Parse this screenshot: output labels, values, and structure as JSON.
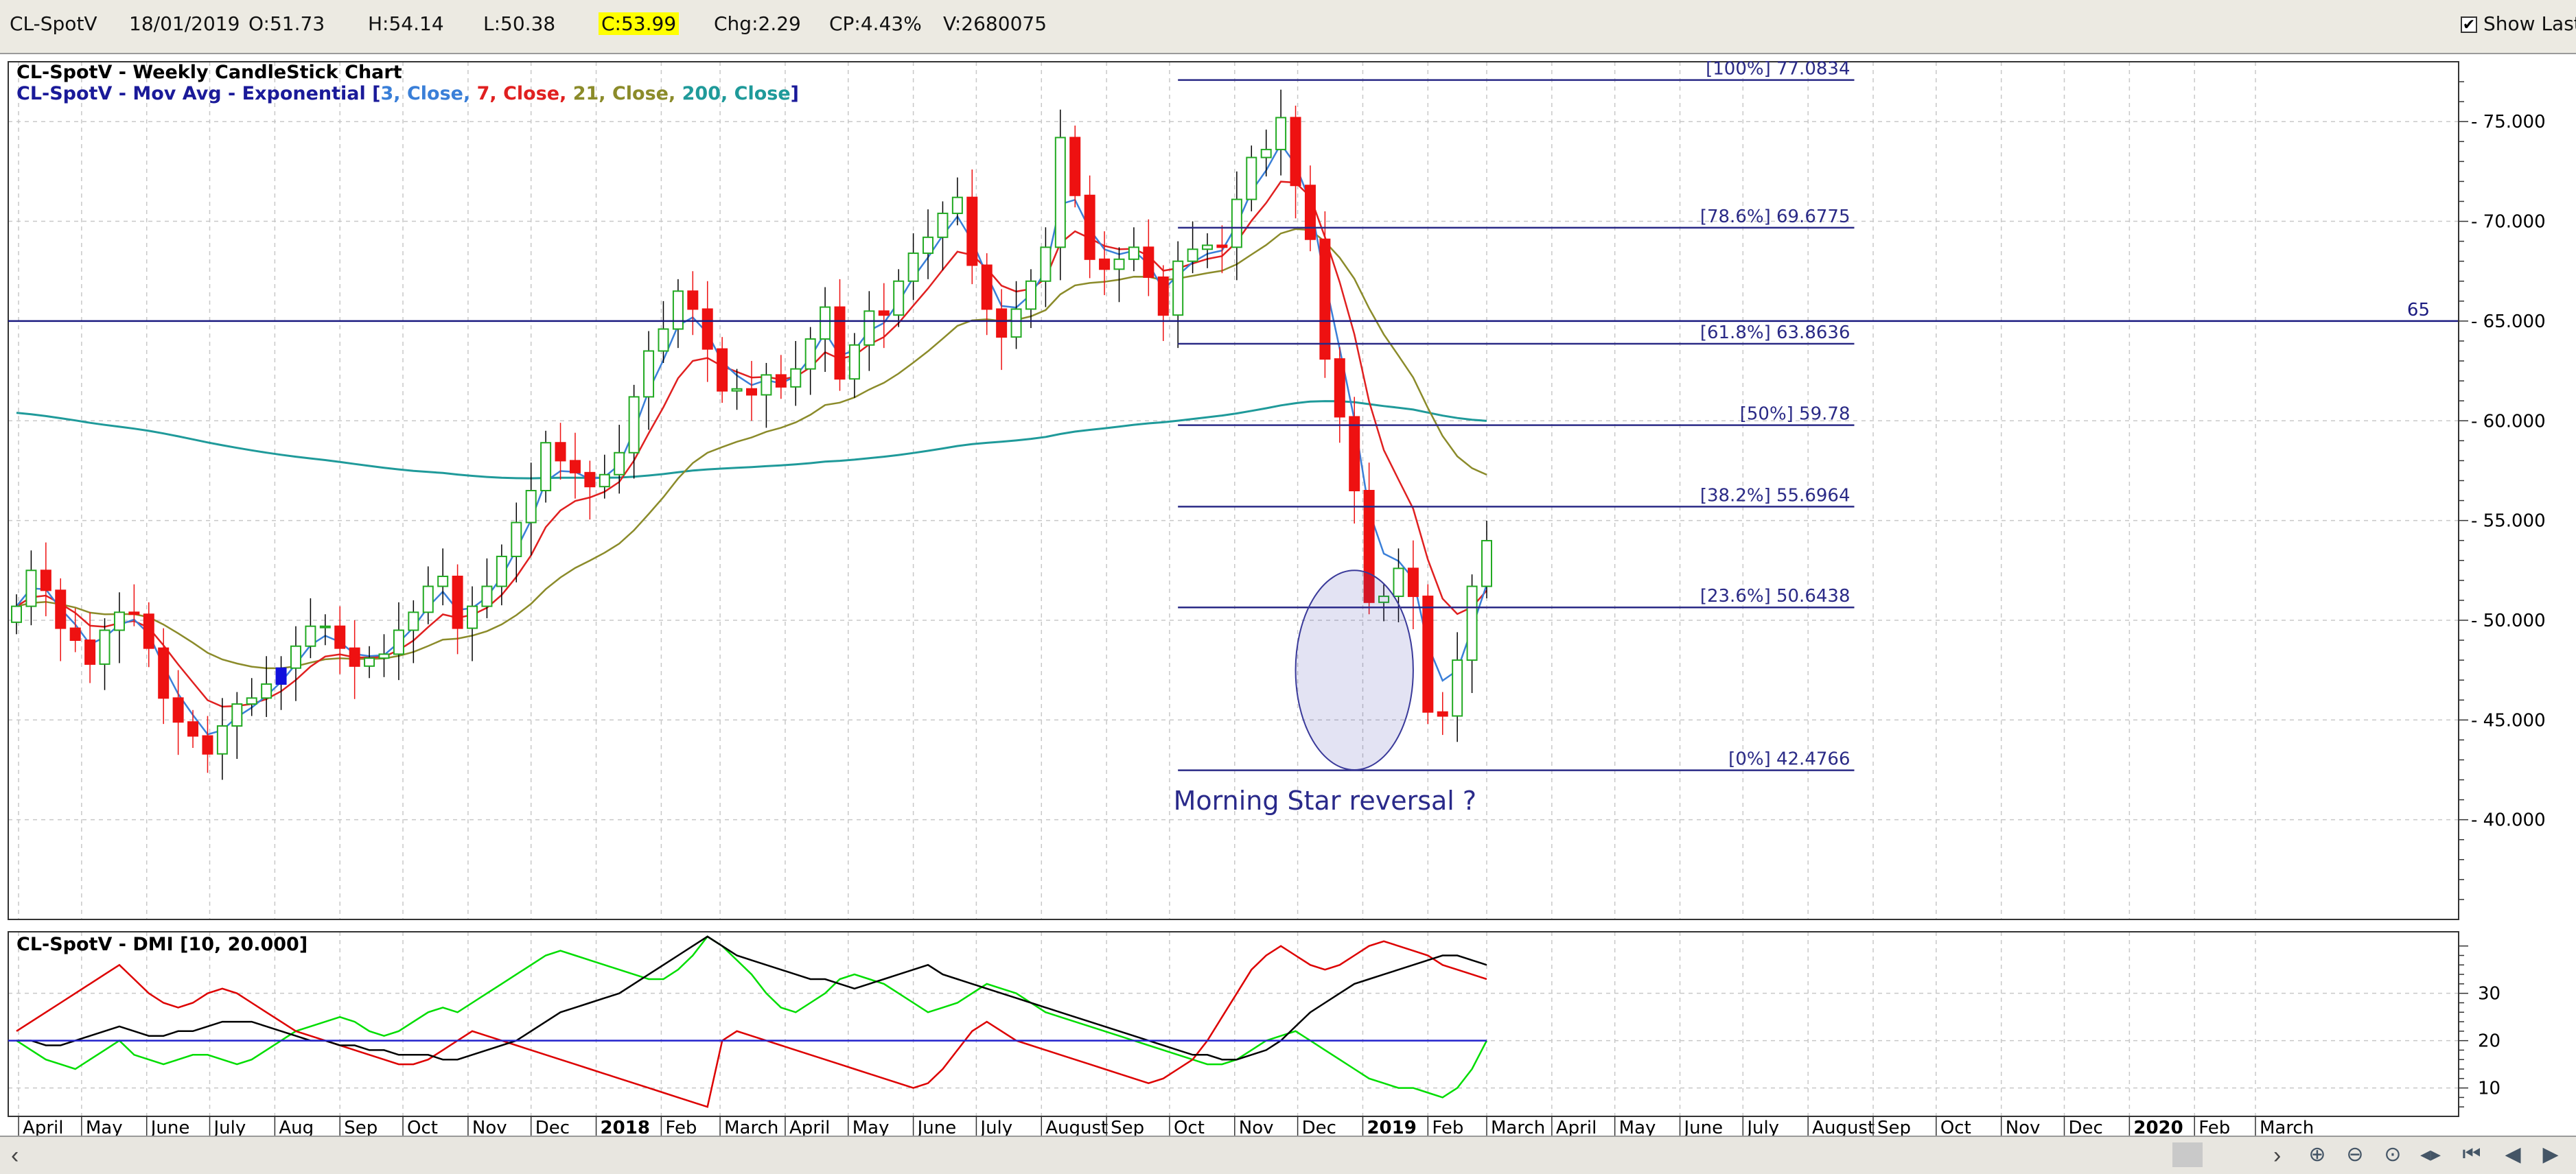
{
  "toolbar": {
    "symbol": "CL-SpotV",
    "date": "18/01/2019",
    "open": "O:51.73",
    "high": "H:54.14",
    "low": "L:50.38",
    "close": "C:53.99",
    "change": "Chg:2.29",
    "change_pct": "CP:4.43%",
    "volume": "V:2680075",
    "show_last_label": "Show Last",
    "show_last_checked": true
  },
  "chart_data": [
    {
      "type": "candlestick",
      "title": "CL-SpotV - Weekly CandleStick Chart",
      "subtitle_prefix": "CL-SpotV - Mov Avg - Exponential [",
      "subtitle_parts": [
        {
          "text": "3, Close, ",
          "color": "#3a7fd8"
        },
        {
          "text": "7, Close, ",
          "color": "#e02020"
        },
        {
          "text": "21, Close, ",
          "color": "#8b8b2a"
        },
        {
          "text": "200, Close",
          "color": "#1f9a9a"
        }
      ],
      "subtitle_suffix": "]",
      "y_ticks": [
        "75.000",
        "70.000",
        "65.000",
        "60.000",
        "55.000",
        "50.000",
        "45.000",
        "40.000"
      ],
      "ylim": [
        35,
        78
      ],
      "x_labels": [
        "April",
        "May",
        "June",
        "July",
        "Aug",
        "Sep",
        "Oct",
        "Nov",
        "Dec",
        "2018",
        "Feb",
        "March",
        "April",
        "May",
        "June",
        "July",
        "August",
        "Sep",
        "Oct",
        "Nov",
        "Dec",
        "2019",
        "Feb",
        "March",
        "April",
        "May",
        "June",
        "July",
        "August",
        "Sep",
        "Oct",
        "Nov",
        "Dec",
        "2020",
        "Feb",
        "March"
      ],
      "bold_x_labels": [
        "2018",
        "2019",
        "2020"
      ],
      "closes": [
        50.7,
        52.5,
        51.5,
        49.6,
        49.0,
        47.8,
        49.5,
        50.4,
        50.3,
        48.6,
        46.1,
        44.9,
        44.2,
        43.3,
        44.7,
        45.8,
        46.1,
        46.8,
        47.6,
        48.7,
        49.7,
        49.7,
        48.6,
        47.7,
        48.1,
        48.3,
        49.5,
        50.4,
        51.7,
        52.2,
        49.6,
        50.7,
        51.7,
        53.2,
        54.9,
        56.5,
        58.9,
        58.0,
        57.4,
        56.7,
        57.3,
        58.4,
        61.2,
        63.5,
        64.6,
        66.5,
        65.6,
        63.6,
        61.5,
        61.6,
        61.3,
        62.3,
        61.7,
        62.6,
        64.1,
        65.7,
        62.1,
        63.8,
        65.5,
        65.3,
        67.0,
        68.4,
        69.2,
        70.4,
        71.2,
        67.8,
        65.6,
        64.2,
        65.6,
        67.0,
        68.7,
        74.2,
        71.3,
        68.1,
        67.6,
        68.1,
        68.7,
        67.2,
        65.3,
        68.0,
        68.6,
        68.8,
        68.7,
        71.1,
        73.2,
        73.6,
        75.2,
        71.8,
        69.1,
        63.1,
        60.2,
        56.5,
        50.9,
        51.2,
        52.6,
        51.2,
        45.4,
        45.2,
        48.0,
        51.7,
        53.99
      ],
      "closes_index0_week": "2017-03-31",
      "highlighted_candle_week": "2017-08-04",
      "ema_200_start": 60.5,
      "horizontal_line": {
        "value": 65,
        "label": "65"
      },
      "fibonacci": {
        "levels": [
          {
            "label": "[100%] 77.0834",
            "value": 77.0834
          },
          {
            "label": "[78.6%] 69.6775",
            "value": 69.6775
          },
          {
            "label": "[61.8%] 63.8636",
            "value": 63.8636
          },
          {
            "label": "[50%] 59.78",
            "value": 59.78
          },
          {
            "label": "[38.2%] 55.6964",
            "value": 55.6964
          },
          {
            "label": "[23.6%] 50.6438",
            "value": 50.6438
          },
          {
            "label": "[0%] 42.4766",
            "value": 42.4766
          }
        ],
        "start_week": "2018-10-05",
        "end_week": "2019-08-23"
      },
      "annotation": {
        "text": "Morning Star reversal ?",
        "week": "2018-12-14",
        "value": 40.5
      },
      "ellipse": {
        "center_week": "2018-12-28",
        "center_value": 47.5,
        "half_width_weeks": 4,
        "half_height": 5
      }
    },
    {
      "type": "line",
      "title": "CL-SpotV - DMI [10, 20.000]",
      "y_ticks": [
        "30",
        "20",
        "10"
      ],
      "ylim": [
        4,
        43
      ],
      "reference_line": 20,
      "series": [
        {
          "color": "#00dd00",
          "values": [
            20,
            18,
            16,
            15,
            14,
            16,
            18,
            20,
            17,
            16,
            15,
            16,
            17,
            17,
            16,
            15,
            16,
            18,
            20,
            22,
            23,
            24,
            25,
            24,
            22,
            21,
            22,
            24,
            26,
            27,
            26,
            28,
            30,
            32,
            34,
            36,
            38,
            39,
            38,
            37,
            36,
            35,
            34,
            33,
            33,
            35,
            38,
            42,
            40,
            37,
            34,
            30,
            27,
            26,
            28,
            30,
            33,
            34,
            33,
            32,
            30,
            28,
            26,
            27,
            28,
            30,
            32,
            31,
            30,
            28,
            26,
            25,
            24,
            23,
            22,
            21,
            20,
            19,
            18,
            17,
            16,
            15,
            15,
            16,
            18,
            20,
            21,
            22,
            20,
            18,
            16,
            14,
            12,
            11,
            10,
            10,
            9,
            8,
            10,
            14,
            20
          ]
        },
        {
          "color": "#dd0000",
          "values": [
            22,
            24,
            26,
            28,
            30,
            32,
            34,
            36,
            33,
            30,
            28,
            27,
            28,
            30,
            31,
            30,
            28,
            26,
            24,
            22,
            21,
            20,
            19,
            18,
            17,
            16,
            15,
            15,
            16,
            18,
            20,
            22,
            21,
            20,
            19,
            18,
            17,
            16,
            15,
            14,
            13,
            12,
            11,
            10,
            9,
            8,
            7,
            6,
            20,
            22,
            21,
            20,
            19,
            18,
            17,
            16,
            15,
            14,
            13,
            12,
            11,
            10,
            11,
            14,
            18,
            22,
            24,
            22,
            20,
            19,
            18,
            17,
            16,
            15,
            14,
            13,
            12,
            11,
            12,
            14,
            16,
            20,
            25,
            30,
            35,
            38,
            40,
            38,
            36,
            35,
            36,
            38,
            40,
            41,
            40,
            39,
            38,
            36,
            35,
            34,
            33
          ]
        },
        {
          "color": "#000000",
          "values": [
            20,
            20,
            19,
            19,
            20,
            21,
            22,
            23,
            22,
            21,
            21,
            22,
            22,
            23,
            24,
            24,
            24,
            23,
            22,
            21,
            20,
            20,
            19,
            19,
            18,
            18,
            17,
            17,
            17,
            16,
            16,
            17,
            18,
            19,
            20,
            22,
            24,
            26,
            27,
            28,
            29,
            30,
            32,
            34,
            36,
            38,
            40,
            42,
            40,
            38,
            37,
            36,
            35,
            34,
            33,
            33,
            32,
            31,
            32,
            33,
            34,
            35,
            36,
            34,
            33,
            32,
            31,
            30,
            29,
            28,
            27,
            26,
            25,
            24,
            23,
            22,
            21,
            20,
            19,
            18,
            17,
            17,
            16,
            16,
            17,
            18,
            20,
            23,
            26,
            28,
            30,
            32,
            33,
            34,
            35,
            36,
            37,
            38,
            38,
            37,
            36
          ]
        }
      ]
    }
  ],
  "colors": {
    "bull": "#22aa22",
    "bear": "#ee1111",
    "highlight": "#1010dd",
    "fib": "#2a2a86",
    "annotation": "#2a2a8a",
    "ema3": "#3a7fd8",
    "ema7": "#e02020",
    "ema21": "#8b8b2a",
    "ema200": "#1f9a9a"
  },
  "scrollbar": {
    "left_arrow": "‹",
    "right_arrow": "›"
  },
  "nav_icons": [
    "zoom-in-icon",
    "zoom-out-icon",
    "reset-zoom-icon",
    "scroll-both-icon",
    "scroll-start-icon",
    "scroll-back-icon",
    "scroll-forward-icon"
  ]
}
